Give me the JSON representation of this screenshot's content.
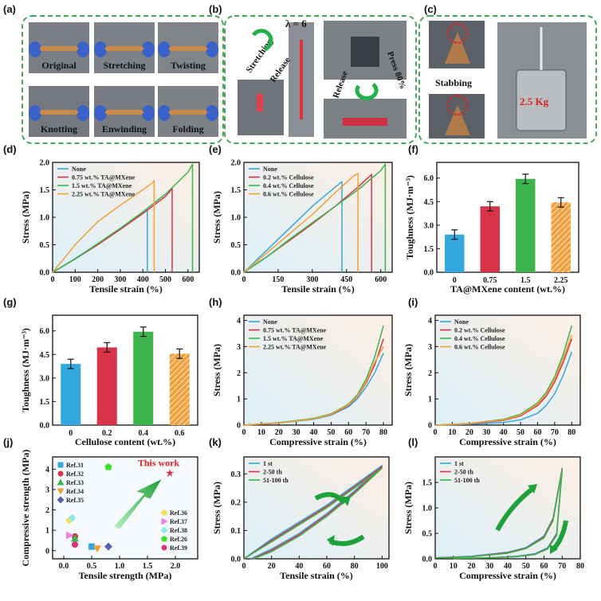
{
  "panels": {
    "a": {
      "label": "(a)",
      "photos": [
        "Original",
        "Stretching",
        "Twisting",
        "Knotting",
        "Enwinding",
        "Folding"
      ]
    },
    "b": {
      "label": "(b)",
      "stretching": "Stretching",
      "release1": "Release",
      "lambda": "λ = 6",
      "release2": "Release",
      "press": "Press 80%"
    },
    "c": {
      "label": "(c)",
      "stabbing": "Stabbing",
      "weight": "2.5 Kg"
    }
  },
  "colors": {
    "blue": "#33a8e0",
    "red": "#d9334a",
    "green": "#3cb44b",
    "orange": "#f3a03a",
    "yellow": "#f5e050",
    "pink": "#f07ce8",
    "cyan": "#8de8f0",
    "brightgreen": "#3ae02a",
    "magenta": "#e0307a",
    "navy": "#5560b0",
    "border": "#47a85a"
  },
  "chart_data": [
    {
      "id": "d",
      "label": "(d)",
      "type": "line",
      "xlabel": "Tensile strain (%)",
      "ylabel": "Stress (MPa)",
      "xlim": [
        0,
        650
      ],
      "ylim": [
        0,
        2.0
      ],
      "xticks": [
        0,
        100,
        200,
        300,
        400,
        500,
        600
      ],
      "yticks": [
        0.0,
        0.5,
        1.0,
        1.5,
        2.0
      ],
      "series": [
        {
          "name": "None",
          "color": "blue",
          "x": [
            0,
            50,
            100,
            200,
            300,
            400,
            420,
            420
          ],
          "y": [
            0,
            0.12,
            0.25,
            0.52,
            0.8,
            1.07,
            1.13,
            0
          ]
        },
        {
          "name": "0.75 wt.% TA@MXene",
          "color": "red",
          "x": [
            0,
            100,
            200,
            300,
            400,
            500,
            530,
            530
          ],
          "y": [
            0,
            0.24,
            0.5,
            0.78,
            1.07,
            1.38,
            1.52,
            0
          ]
        },
        {
          "name": "1.5 wt.% TA@MXene",
          "color": "green",
          "x": [
            0,
            100,
            200,
            300,
            400,
            500,
            600,
            620,
            620
          ],
          "y": [
            0,
            0.24,
            0.52,
            0.8,
            1.1,
            1.42,
            1.82,
            1.97,
            0
          ]
        },
        {
          "name": "2.25 wt.% TA@MXene",
          "color": "orange",
          "x": [
            0,
            50,
            100,
            200,
            300,
            400,
            440,
            450,
            450
          ],
          "y": [
            0,
            0.25,
            0.5,
            0.92,
            1.22,
            1.5,
            1.62,
            1.67,
            0
          ]
        }
      ]
    },
    {
      "id": "e",
      "label": "(e)",
      "type": "line",
      "xlabel": "Tensile strain (%)",
      "ylabel": "Stress (MPa)",
      "xlim": [
        0,
        650
      ],
      "ylim": [
        0,
        2.0
      ],
      "xticks": [
        0,
        150,
        300,
        450,
        600
      ],
      "yticks": [
        0.0,
        0.5,
        1.0,
        1.5,
        2.0
      ],
      "series": [
        {
          "name": "None",
          "color": "blue",
          "x": [
            0,
            100,
            200,
            300,
            400,
            430,
            430
          ],
          "y": [
            0,
            0.4,
            0.8,
            1.2,
            1.55,
            1.65,
            0
          ]
        },
        {
          "name": "0.2 wt.% Cellulose",
          "color": "red",
          "x": [
            0,
            100,
            200,
            300,
            400,
            500,
            560,
            560
          ],
          "y": [
            0,
            0.28,
            0.58,
            0.88,
            1.2,
            1.55,
            1.78,
            0
          ]
        },
        {
          "name": "0.4 wt.% Cellulose",
          "color": "green",
          "x": [
            0,
            100,
            200,
            300,
            400,
            500,
            600,
            620,
            620
          ],
          "y": [
            0,
            0.28,
            0.6,
            0.9,
            1.2,
            1.5,
            1.85,
            1.97,
            0
          ]
        },
        {
          "name": "0.6 wt.% Cellulose",
          "color": "orange",
          "x": [
            0,
            100,
            200,
            300,
            400,
            480,
            500,
            500
          ],
          "y": [
            0,
            0.35,
            0.7,
            1.05,
            1.45,
            1.75,
            1.8,
            0
          ]
        }
      ]
    },
    {
      "id": "f",
      "label": "(f)",
      "type": "bar",
      "xlabel": "TA@MXene content (wt.%)",
      "ylabel": "Toughness (MJ·m⁻³)",
      "ylim": [
        0,
        7.0
      ],
      "yticks": [
        0.0,
        1.5,
        3.0,
        4.5,
        6.0
      ],
      "categories": [
        "0",
        "0.75",
        "1.5",
        "2.25"
      ],
      "values": [
        2.4,
        4.2,
        5.95,
        4.45
      ],
      "errors": [
        0.3,
        0.3,
        0.3,
        0.3
      ],
      "bar_colors": [
        "blue",
        "red",
        "green",
        "orange"
      ]
    },
    {
      "id": "g",
      "label": "(g)",
      "type": "bar",
      "xlabel": "Cellulose content (wt.%)",
      "ylabel": "Toughness (MJ·m⁻³)",
      "ylim": [
        0,
        7.0
      ],
      "yticks": [
        0.0,
        1.5,
        3.0,
        4.5,
        6.0
      ],
      "categories": [
        "0",
        "0.2",
        "0.4",
        "0.6"
      ],
      "values": [
        3.9,
        4.95,
        5.95,
        4.55
      ],
      "errors": [
        0.3,
        0.3,
        0.3,
        0.3
      ],
      "bar_colors": [
        "blue",
        "red",
        "green",
        "orange"
      ]
    },
    {
      "id": "h",
      "label": "(h)",
      "type": "line",
      "xlabel": "Compressive strain (%)",
      "ylabel": "Stress (MPa)",
      "xlim": [
        0,
        85
      ],
      "ylim": [
        0,
        4.2
      ],
      "xticks": [
        0,
        10,
        20,
        30,
        40,
        50,
        60,
        70,
        80
      ],
      "yticks": [
        0,
        1,
        2,
        3,
        4
      ],
      "series": [
        {
          "name": "None",
          "color": "blue",
          "x": [
            0,
            20,
            40,
            50,
            60,
            65,
            70,
            75,
            80
          ],
          "y": [
            0,
            0.08,
            0.22,
            0.38,
            0.7,
            1.0,
            1.45,
            2.0,
            2.75
          ]
        },
        {
          "name": "0.75 wt.% TA@MXene",
          "color": "red",
          "x": [
            0,
            20,
            40,
            50,
            60,
            65,
            70,
            75,
            80
          ],
          "y": [
            0,
            0.08,
            0.24,
            0.4,
            0.75,
            1.08,
            1.6,
            2.3,
            3.3
          ]
        },
        {
          "name": "1.5 wt.% TA@MXene",
          "color": "green",
          "x": [
            0,
            20,
            40,
            50,
            60,
            65,
            70,
            75,
            80
          ],
          "y": [
            0,
            0.09,
            0.26,
            0.43,
            0.8,
            1.15,
            1.75,
            2.6,
            3.8
          ]
        },
        {
          "name": "2.25 wt.% TA@MXene",
          "color": "orange",
          "x": [
            0,
            20,
            40,
            50,
            60,
            65,
            70,
            75,
            80
          ],
          "y": [
            0,
            0.08,
            0.24,
            0.41,
            0.77,
            1.1,
            1.65,
            2.4,
            3.0
          ]
        }
      ]
    },
    {
      "id": "i",
      "label": "(i)",
      "type": "line",
      "xlabel": "Compressive strain (%)",
      "ylabel": "Stress (MPa)",
      "xlim": [
        0,
        85
      ],
      "ylim": [
        0,
        4.2
      ],
      "xticks": [
        0,
        10,
        20,
        30,
        40,
        50,
        60,
        70,
        80
      ],
      "yticks": [
        0,
        1,
        2,
        3,
        4
      ],
      "series": [
        {
          "name": "None",
          "color": "blue",
          "x": [
            0,
            20,
            40,
            50,
            60,
            65,
            70,
            75,
            80
          ],
          "y": [
            0,
            0.03,
            0.1,
            0.2,
            0.45,
            0.75,
            1.2,
            1.9,
            2.8
          ]
        },
        {
          "name": "0.2 wt.% Cellulose",
          "color": "red",
          "x": [
            0,
            20,
            40,
            50,
            60,
            65,
            70,
            75,
            80
          ],
          "y": [
            0,
            0.05,
            0.18,
            0.35,
            0.75,
            1.1,
            1.65,
            2.4,
            3.3
          ]
        },
        {
          "name": "0.4 wt.% Cellulose",
          "color": "green",
          "x": [
            0,
            20,
            40,
            50,
            60,
            65,
            70,
            75,
            80
          ],
          "y": [
            0,
            0.06,
            0.22,
            0.42,
            0.85,
            1.25,
            1.85,
            2.7,
            3.8
          ]
        },
        {
          "name": "0.6 wt.% Cellulose",
          "color": "orange",
          "x": [
            0,
            20,
            40,
            50,
            60,
            65,
            70,
            75,
            80
          ],
          "y": [
            0,
            0.06,
            0.2,
            0.38,
            0.8,
            1.18,
            1.75,
            2.55,
            3.45
          ]
        }
      ]
    },
    {
      "id": "j",
      "label": "(j)",
      "type": "scatter",
      "xlabel": "Tensile strength (MPa)",
      "ylabel": "Compressive strength (MPa)",
      "xlim": [
        -0.2,
        2.4
      ],
      "ylim": [
        -0.4,
        4.6
      ],
      "xticks": [
        0.0,
        0.5,
        1.0,
        1.5,
        2.0
      ],
      "yticks": [
        0,
        1,
        2,
        3,
        4
      ],
      "annotation": "This work",
      "points": [
        {
          "name": "Ref.31",
          "shape": "square",
          "color": "blue",
          "x": 0.5,
          "y": 0.2
        },
        {
          "name": "Ref.32",
          "shape": "circle",
          "color": "red",
          "x": 0.2,
          "y": 0.7
        },
        {
          "name": "Ref.33",
          "shape": "triangle",
          "color": "green",
          "x": 0.2,
          "y": 0.6
        },
        {
          "name": "Ref.34",
          "shape": "triangle-down",
          "color": "orange",
          "x": 0.6,
          "y": 0.1
        },
        {
          "name": "Ref.35",
          "shape": "diamond",
          "color": "navy",
          "x": 0.8,
          "y": 0.2
        },
        {
          "name": "Ref.36",
          "shape": "diamond",
          "color": "yellow",
          "x": 0.1,
          "y": 1.5
        },
        {
          "name": "Ref.37",
          "shape": "triangle-right",
          "color": "pink",
          "x": 0.1,
          "y": 0.75
        },
        {
          "name": "Ref.38",
          "shape": "diamond",
          "color": "cyan",
          "x": 0.15,
          "y": 1.6
        },
        {
          "name": "Ref.26",
          "shape": "pentagon",
          "color": "brightgreen",
          "x": 0.8,
          "y": 4.1
        },
        {
          "name": "Ref.39",
          "shape": "circle",
          "color": "magenta",
          "x": 0.2,
          "y": 0.3
        },
        {
          "name": "This work",
          "shape": "star",
          "color": "red",
          "x": 1.9,
          "y": 3.8
        }
      ],
      "legend_left": [
        "Ref.31",
        "Ref.32",
        "Ref.33",
        "Ref.34",
        "Ref.35"
      ],
      "legend_right": [
        "Ref.36",
        "Ref.37",
        "Ref.38",
        "Ref.26",
        "Ref.39"
      ]
    },
    {
      "id": "k",
      "label": "(k)",
      "type": "line",
      "xlabel": "Tensile strain (%)",
      "ylabel": "Stress (MPa)",
      "xlim": [
        0,
        105
      ],
      "ylim": [
        0,
        0.36
      ],
      "xticks": [
        0,
        20,
        40,
        60,
        80,
        100
      ],
      "yticks": [
        0.0,
        0.1,
        0.2,
        0.3
      ],
      "series": [
        {
          "name": "1 st",
          "color": "blue",
          "x": [
            0,
            20,
            40,
            60,
            80,
            100,
            80,
            60,
            40,
            20,
            5
          ],
          "y": [
            0,
            0.07,
            0.13,
            0.19,
            0.26,
            0.33,
            0.24,
            0.16,
            0.09,
            0.035,
            0
          ]
        },
        {
          "name": "2-50 th",
          "color": "red",
          "x": [
            0,
            20,
            40,
            60,
            80,
            100,
            80,
            60,
            40,
            20,
            6
          ],
          "y": [
            0,
            0.065,
            0.125,
            0.185,
            0.255,
            0.325,
            0.235,
            0.155,
            0.085,
            0.03,
            0
          ]
        },
        {
          "name": "51-100 th",
          "color": "green",
          "x": [
            0,
            20,
            40,
            60,
            80,
            100,
            80,
            60,
            40,
            20,
            7
          ],
          "y": [
            0,
            0.06,
            0.12,
            0.18,
            0.25,
            0.32,
            0.23,
            0.15,
            0.08,
            0.025,
            0
          ]
        }
      ]
    },
    {
      "id": "l",
      "label": "(l)",
      "type": "line",
      "xlabel": "Compressive strain (%)",
      "ylabel": "Stress (MPa)",
      "xlim": [
        0,
        80
      ],
      "ylim": [
        0,
        2.0
      ],
      "xticks": [
        0,
        10,
        20,
        30,
        40,
        50,
        60,
        70,
        80
      ],
      "yticks": [
        0.0,
        0.5,
        1.0,
        1.5
      ],
      "series": [
        {
          "name": "1 st",
          "color": "blue",
          "x": [
            0,
            20,
            40,
            50,
            60,
            65,
            70,
            67,
            62,
            55,
            45,
            30,
            10
          ],
          "y": [
            0.02,
            0.05,
            0.13,
            0.22,
            0.45,
            0.8,
            1.78,
            0.5,
            0.22,
            0.1,
            0.05,
            0.02,
            0.01
          ]
        },
        {
          "name": "2-50 th",
          "color": "red",
          "x": [
            0,
            20,
            40,
            50,
            60,
            65,
            70,
            67,
            62,
            55,
            45,
            30,
            10
          ],
          "y": [
            0.02,
            0.045,
            0.12,
            0.21,
            0.43,
            0.78,
            1.76,
            0.48,
            0.2,
            0.09,
            0.045,
            0.02,
            0.01
          ]
        },
        {
          "name": "51-100 th",
          "color": "green",
          "x": [
            0,
            20,
            40,
            50,
            60,
            65,
            70,
            67,
            62,
            55,
            45,
            30,
            10
          ],
          "y": [
            0.02,
            0.04,
            0.11,
            0.2,
            0.41,
            0.75,
            1.74,
            0.46,
            0.19,
            0.085,
            0.04,
            0.018,
            0.01
          ]
        }
      ]
    }
  ]
}
